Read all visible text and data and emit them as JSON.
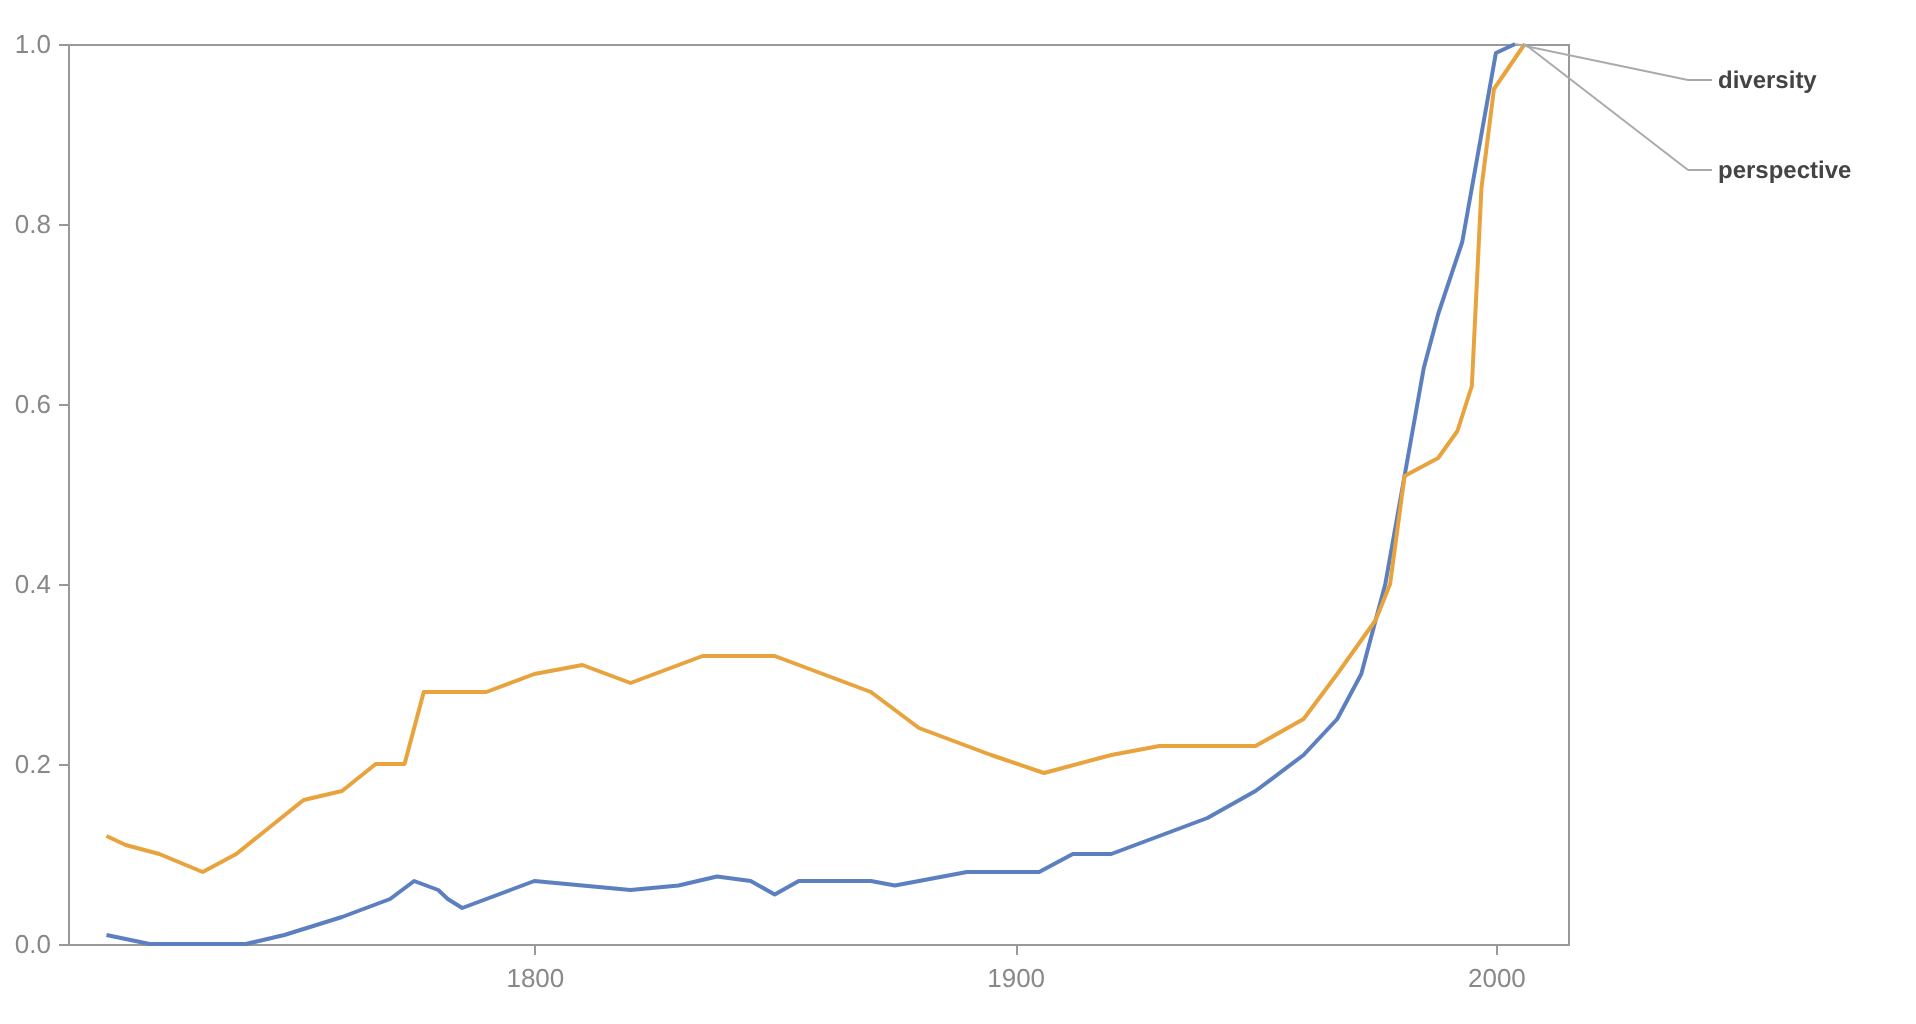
{
  "chart_data": {
    "type": "line",
    "xlim": [
      1703,
      2015
    ],
    "xticks": [
      1800,
      1900,
      2000
    ],
    "ylim": [
      0,
      1
    ],
    "yticks": [
      {
        "value": 0,
        "label": "0.0"
      },
      {
        "value": 0.2,
        "label": "0.2"
      },
      {
        "value": 0.4,
        "label": "0.4"
      },
      {
        "value": 0.6,
        "label": "0.6"
      },
      {
        "value": 0.8,
        "label": "0.8"
      },
      {
        "value": 1,
        "label": "1.0"
      }
    ],
    "grid": false,
    "series": [
      {
        "name": "diversity",
        "color": "#5b7fbf",
        "x": [
          1711,
          1720,
          1730,
          1740,
          1748,
          1760,
          1770,
          1775,
          1780,
          1782,
          1785,
          1795,
          1800,
          1810,
          1820,
          1830,
          1838,
          1845,
          1850,
          1855,
          1870,
          1875,
          1890,
          1905,
          1912,
          1920,
          1930,
          1940,
          1950,
          1960,
          1967,
          1972,
          1977,
          1981,
          1985,
          1988,
          1993,
          1997,
          2000,
          2004
        ],
        "values": [
          0.01,
          0,
          0,
          0,
          0.01,
          0.03,
          0.05,
          0.07,
          0.06,
          0.05,
          0.04,
          0.06,
          0.07,
          0.065,
          0.06,
          0.065,
          0.075,
          0.07,
          0.055,
          0.07,
          0.07,
          0.065,
          0.08,
          0.08,
          0.1,
          0.1,
          0.12,
          0.14,
          0.17,
          0.21,
          0.25,
          0.3,
          0.4,
          0.52,
          0.64,
          0.7,
          0.78,
          0.9,
          0.99,
          1
        ]
      },
      {
        "name": "perspective",
        "color": "#e8a33d",
        "x": [
          1711,
          1715,
          1722,
          1731,
          1738,
          1745,
          1752,
          1760,
          1767,
          1773,
          1777,
          1782,
          1790,
          1800,
          1810,
          1820,
          1835,
          1850,
          1860,
          1870,
          1880,
          1895,
          1906,
          1920,
          1930,
          1940,
          1950,
          1960,
          1967,
          1975,
          1978,
          1981,
          1988,
          1992,
          1995,
          1997,
          1999.6,
          2006
        ],
        "values": [
          0.12,
          0.11,
          0.1,
          0.08,
          0.1,
          0.13,
          0.16,
          0.17,
          0.2,
          0.2,
          0.28,
          0.28,
          0.28,
          0.3,
          0.31,
          0.29,
          0.32,
          0.32,
          0.3,
          0.28,
          0.24,
          0.21,
          0.19,
          0.21,
          0.22,
          0.22,
          0.22,
          0.25,
          0.3,
          0.36,
          0.4,
          0.52,
          0.54,
          0.57,
          0.62,
          0.84,
          0.95,
          1
        ]
      }
    ]
  }
}
